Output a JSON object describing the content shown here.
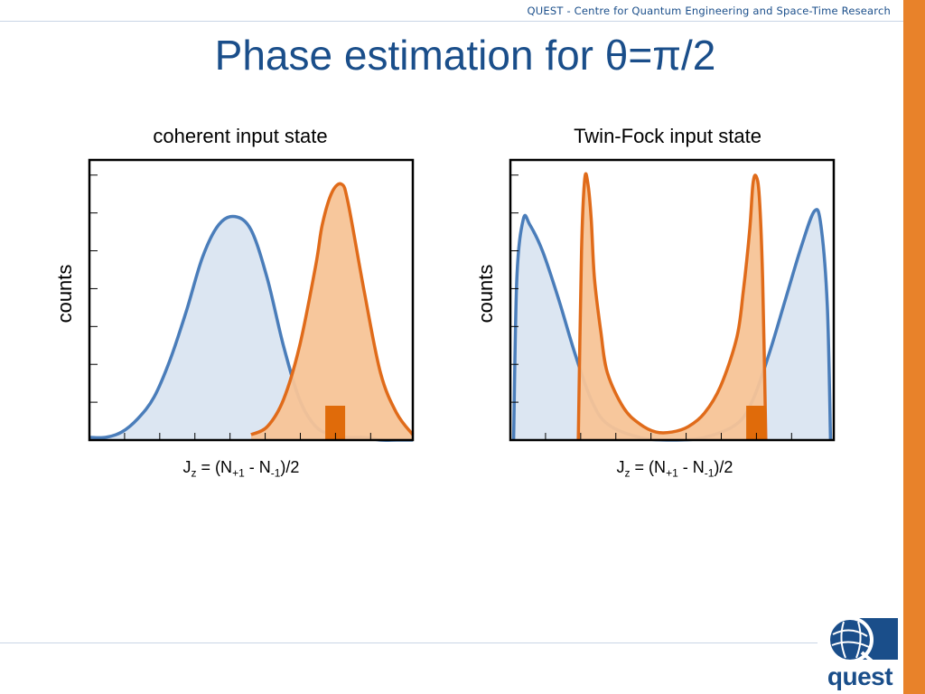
{
  "header": {
    "affiliation": "QUEST - Centre for Quantum Engineering and Space-Time Research"
  },
  "slide": {
    "title": "Phase estimation for θ=π/2"
  },
  "logo": {
    "text": "quest"
  },
  "colors": {
    "accent_bar": "#e8822a",
    "title": "#1a4e8a",
    "coherent_blue": "#4a7dba",
    "blue_fill": "#dce6f2",
    "orange_line": "#e06b1a",
    "orange_fill": "#f7c497",
    "marker": "#e06b0a"
  },
  "chart_data": [
    {
      "type": "area",
      "title": "coherent input state",
      "xlabel": {
        "base": "J",
        "sub": "z",
        "rest": " = (N",
        "sub2": "+1",
        "mid": " - N",
        "sub3": "-1",
        "end": ")/2"
      },
      "ylabel": "counts",
      "xlim": [
        0,
        1
      ],
      "ylim": [
        0,
        1
      ],
      "grid": false,
      "series": [
        {
          "color": "blue",
          "x": [
            0,
            0.05,
            0.1,
            0.15,
            0.2,
            0.25,
            0.3,
            0.35,
            0.4,
            0.45,
            0.5,
            0.55,
            0.6,
            0.65,
            0.7,
            0.75,
            0.8,
            0.85,
            0.9,
            0.95,
            1.0
          ],
          "y": [
            0.01,
            0.01,
            0.03,
            0.08,
            0.16,
            0.3,
            0.48,
            0.68,
            0.8,
            0.83,
            0.78,
            0.6,
            0.35,
            0.15,
            0.05,
            0.02,
            0.01,
            0.01,
            0.0,
            0.0,
            0.0
          ]
        },
        {
          "color": "orange",
          "x": [
            0.5,
            0.55,
            0.6,
            0.65,
            0.7,
            0.72,
            0.75,
            0.78,
            0.8,
            0.85,
            0.9,
            0.95,
            1.0
          ],
          "y": [
            0.02,
            0.05,
            0.15,
            0.35,
            0.65,
            0.8,
            0.92,
            0.95,
            0.88,
            0.55,
            0.25,
            0.1,
            0.02
          ]
        }
      ],
      "marker_x": 0.76
    },
    {
      "type": "area",
      "title": "Twin-Fock input state",
      "xlabel": {
        "base": "J",
        "sub": "z",
        "rest": " = (N",
        "sub2": "+1",
        "mid": " - N",
        "sub3": "-1",
        "end": ")/2"
      },
      "ylabel": "counts",
      "xlim": [
        0,
        1
      ],
      "ylim": [
        0,
        1
      ],
      "grid": false,
      "series": [
        {
          "color": "blue",
          "x": [
            0.01,
            0.02,
            0.04,
            0.06,
            0.1,
            0.15,
            0.2,
            0.25,
            0.3,
            0.4,
            0.5,
            0.6,
            0.7,
            0.75,
            0.8,
            0.85,
            0.9,
            0.94,
            0.96,
            0.98,
            0.99
          ],
          "y": [
            0.0,
            0.6,
            0.82,
            0.8,
            0.7,
            0.52,
            0.32,
            0.15,
            0.06,
            0.01,
            0.0,
            0.01,
            0.06,
            0.15,
            0.32,
            0.52,
            0.72,
            0.85,
            0.8,
            0.5,
            0.0
          ]
        },
        {
          "color": "orange",
          "x": [
            0.21,
            0.22,
            0.23,
            0.24,
            0.25,
            0.26,
            0.28,
            0.3,
            0.35,
            0.4,
            0.45,
            0.5,
            0.55,
            0.6,
            0.65,
            0.7,
            0.72,
            0.74,
            0.75,
            0.76,
            0.77,
            0.78,
            0.79
          ],
          "y": [
            0.0,
            0.7,
            0.97,
            0.95,
            0.82,
            0.6,
            0.4,
            0.25,
            0.12,
            0.06,
            0.03,
            0.03,
            0.05,
            0.1,
            0.2,
            0.38,
            0.55,
            0.78,
            0.95,
            0.98,
            0.9,
            0.6,
            0.0
          ]
        }
      ],
      "marker_x": 0.76
    }
  ]
}
